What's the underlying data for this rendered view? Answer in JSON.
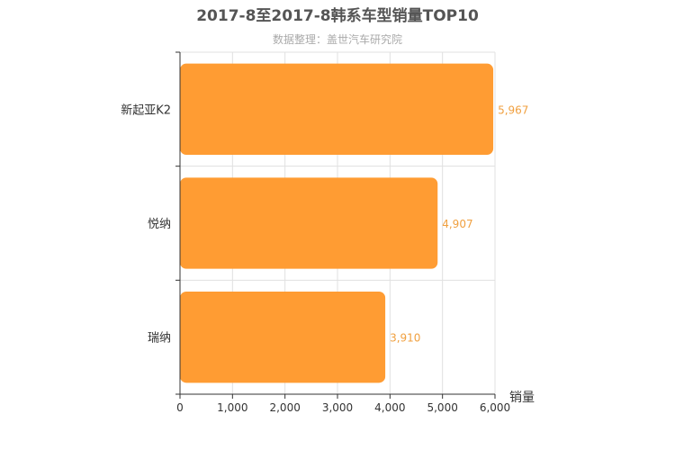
{
  "chart_data": {
    "type": "bar",
    "orientation": "horizontal",
    "title": "2017-8至2017-8韩系车型销量TOP10",
    "subtitle": "数据整理：盖世汽车研究院",
    "categories": [
      "新起亚K2",
      "悦纳",
      "瑞纳"
    ],
    "values": [
      5967,
      4907,
      3910
    ],
    "value_labels": [
      "5,967",
      "4,907",
      "3,910"
    ],
    "xlabel": "销量",
    "xlim": [
      0,
      6000
    ],
    "xticks": [
      0,
      1000,
      2000,
      3000,
      4000,
      5000,
      6000
    ],
    "xtick_labels": [
      "0",
      "1,000",
      "2,000",
      "3,000",
      "4,000",
      "5,000",
      "6,000"
    ],
    "grid": true,
    "bar_color": "#ff9c33",
    "label_color": "#f0a040"
  }
}
